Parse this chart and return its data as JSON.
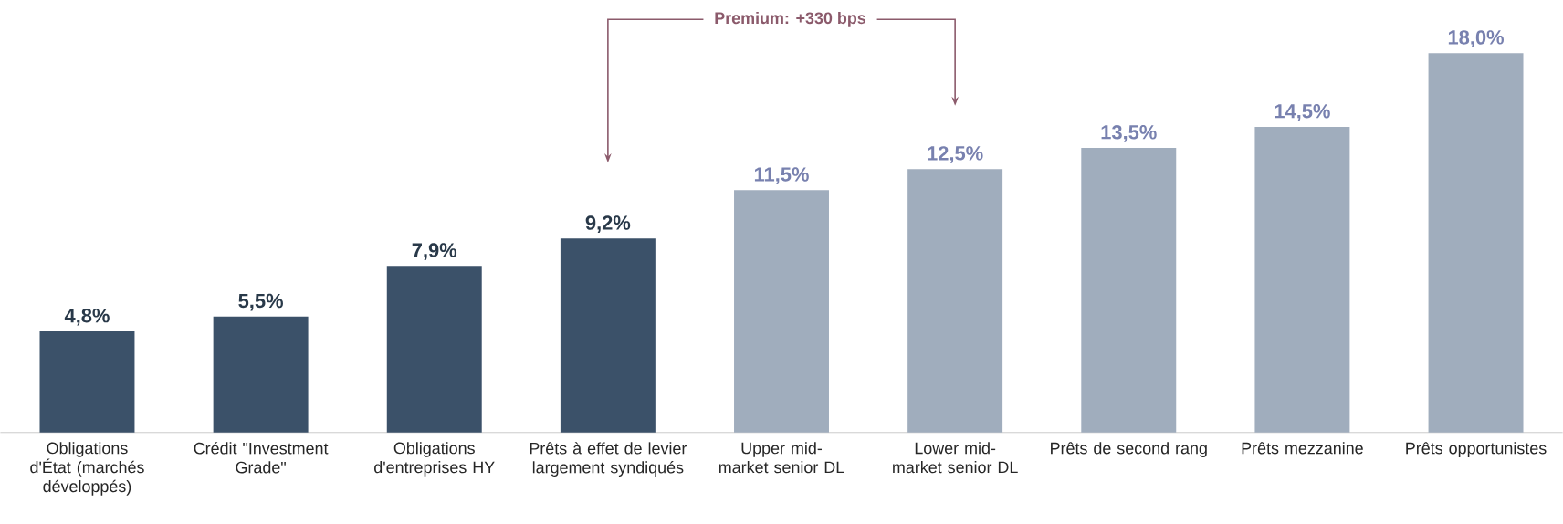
{
  "chart_data": {
    "type": "bar",
    "categories": [
      "Obligations d'État (marchés développés)",
      "Crédit \"Investment Grade\"",
      "Obligations d'entreprises HY",
      "Prêts à effet de levier largement syndiqués",
      "Upper mid-market senior DL",
      "Lower mid-market senior DL",
      "Prêts de second rang",
      "Prêts mezzanine",
      "Prêts opportunistes"
    ],
    "values": [
      4.8,
      5.5,
      7.9,
      9.2,
      11.5,
      12.5,
      13.5,
      14.5,
      18.0
    ],
    "value_labels": [
      "4,8%",
      "5,5%",
      "7,9%",
      "9,2%",
      "11,5%",
      "12,5%",
      "13,5%",
      "14,5%",
      "18,0%"
    ],
    "colors": [
      "#3b5169",
      "#3b5169",
      "#3b5169",
      "#3b5169",
      "#a0adbd",
      "#a0adbd",
      "#a0adbd",
      "#a0adbd",
      "#a0adbd"
    ],
    "annotations": [
      "Premium: +330 bps"
    ]
  }
}
